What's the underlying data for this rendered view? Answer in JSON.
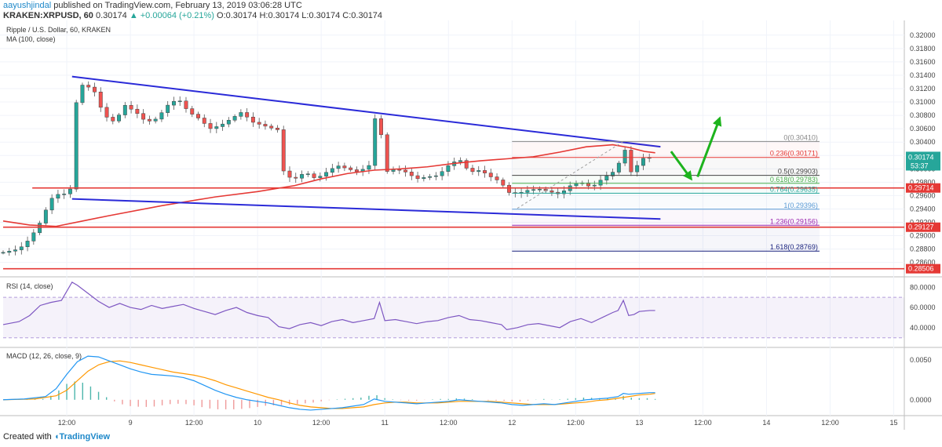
{
  "header": {
    "author": "aayushjindal",
    "published": "published on TradingView.com, February 13, 2019 03:06:28 UTC",
    "symbol": "KRAKEN:XRPUSD, 60",
    "last": "0.30174",
    "change": "▲ +0.00064 (+0.21%)",
    "open": "O:0.30174",
    "high": "H:0.30174",
    "low": "L:0.30174",
    "close": "C:0.30174"
  },
  "footer": {
    "created_with": "Created with",
    "brand": "TradingView"
  },
  "colors": {
    "up": "#26a69a",
    "down": "#ef5350",
    "ma": "#e53935",
    "channel": "#2a2ad8",
    "support": "#e53935",
    "arrow": "#1db31d",
    "rsi": "#7e57c2",
    "macd": "#2196f3",
    "signal": "#ff9800",
    "hist_up": "#4db6ac",
    "hist_down": "#ef9a9a"
  },
  "chart_data": {
    "type": "candlestick",
    "title": "Ripple / U.S. Dollar, 60, KRAKEN",
    "indicator_label": "MA (100, close)",
    "last_price": 0.30174,
    "countdown": "53:37",
    "ylim": [
      0.2842,
      0.3215
    ],
    "y_ticks": [
      "0.32000",
      "0.31800",
      "0.31600",
      "0.31400",
      "0.31200",
      "0.31000",
      "0.30800",
      "0.30600",
      "0.30400",
      "0.30200",
      "0.30000",
      "0.29800",
      "0.29600",
      "0.29400",
      "0.29200",
      "0.29000",
      "0.28800",
      "0.28600"
    ],
    "x_ticks": [
      {
        "label": "12:00",
        "t": 12
      },
      {
        "label": "9",
        "t": 24
      },
      {
        "label": "12:00",
        "t": 36
      },
      {
        "label": "10",
        "t": 48
      },
      {
        "label": "12:00",
        "t": 60
      },
      {
        "label": "11",
        "t": 72
      },
      {
        "label": "12:00",
        "t": 84
      },
      {
        "label": "12",
        "t": 96
      },
      {
        "label": "12:00",
        "t": 108
      },
      {
        "label": "13",
        "t": 120
      },
      {
        "label": "12:00",
        "t": 132
      },
      {
        "label": "14",
        "t": 144
      },
      {
        "label": "12:00",
        "t": 156
      },
      {
        "label": "15",
        "t": 168
      }
    ],
    "close_path": [
      [
        0,
        0.2875
      ],
      [
        3,
        0.288
      ],
      [
        5,
        0.2895
      ],
      [
        7,
        0.292
      ],
      [
        9,
        0.2955
      ],
      [
        11,
        0.2965
      ],
      [
        12,
        0.296
      ],
      [
        13,
        0.2975
      ],
      [
        14,
        0.313
      ],
      [
        15,
        0.3125
      ],
      [
        17,
        0.312
      ],
      [
        19,
        0.308
      ],
      [
        21,
        0.307
      ],
      [
        23,
        0.3095
      ],
      [
        25,
        0.3085
      ],
      [
        27,
        0.307
      ],
      [
        29,
        0.3075
      ],
      [
        31,
        0.3095
      ],
      [
        33,
        0.3105
      ],
      [
        35,
        0.3085
      ],
      [
        37,
        0.3075
      ],
      [
        39,
        0.306
      ],
      [
        41,
        0.3065
      ],
      [
        43,
        0.3075
      ],
      [
        45,
        0.3085
      ],
      [
        47,
        0.307
      ],
      [
        49,
        0.3065
      ],
      [
        51,
        0.306
      ],
      [
        52,
        0.3058
      ],
      [
        53,
        0.299
      ],
      [
        55,
        0.2985
      ],
      [
        57,
        0.2995
      ],
      [
        59,
        0.2985
      ],
      [
        61,
        0.2995
      ],
      [
        63,
        0.3005
      ],
      [
        65,
        0.3
      ],
      [
        67,
        0.2995
      ],
      [
        69,
        0.3005
      ],
      [
        70,
        0.3075
      ],
      [
        71,
        0.3075
      ],
      [
        72,
        0.2995
      ],
      [
        74,
        0.3
      ],
      [
        76,
        0.2995
      ],
      [
        78,
        0.2985
      ],
      [
        80,
        0.2988
      ],
      [
        82,
        0.299
      ],
      [
        84,
        0.3005
      ],
      [
        86,
        0.3015
      ],
      [
        88,
        0.2995
      ],
      [
        90,
        0.2998
      ],
      [
        92,
        0.2988
      ],
      [
        94,
        0.298
      ],
      [
        95,
        0.2965
      ],
      [
        97,
        0.2963
      ],
      [
        99,
        0.2968
      ],
      [
        101,
        0.297
      ],
      [
        103,
        0.2966
      ],
      [
        105,
        0.2962
      ],
      [
        107,
        0.2975
      ],
      [
        109,
        0.298
      ],
      [
        111,
        0.2972
      ],
      [
        113,
        0.2985
      ],
      [
        115,
        0.2995
      ],
      [
        116,
        0.3003
      ],
      [
        117,
        0.304
      ],
      [
        118,
        0.3
      ],
      [
        119,
        0.299
      ],
      [
        120,
        0.3015
      ],
      [
        122,
        0.3017
      ],
      [
        123,
        0.30174
      ]
    ],
    "moving_average": [
      [
        0,
        0.2922
      ],
      [
        5,
        0.2916
      ],
      [
        10,
        0.2914
      ],
      [
        15,
        0.2922
      ],
      [
        20,
        0.293
      ],
      [
        30,
        0.2945
      ],
      [
        40,
        0.2958
      ],
      [
        48,
        0.2966
      ],
      [
        55,
        0.2975
      ],
      [
        60,
        0.2985
      ],
      [
        65,
        0.2993
      ],
      [
        70,
        0.2998
      ],
      [
        75,
        0.3
      ],
      [
        80,
        0.3003
      ],
      [
        85,
        0.3008
      ],
      [
        90,
        0.3012
      ],
      [
        95,
        0.3015
      ],
      [
        100,
        0.3018
      ],
      [
        105,
        0.3025
      ],
      [
        110,
        0.3033
      ],
      [
        115,
        0.3036
      ],
      [
        118,
        0.3032
      ],
      [
        121,
        0.3026
      ],
      [
        123,
        0.3024
      ]
    ],
    "channel_upper": [
      [
        13,
        0.3138
      ],
      [
        124,
        0.3033
      ]
    ],
    "channel_lower": [
      [
        13,
        0.2955
      ],
      [
        124,
        0.2925
      ]
    ],
    "support_lines": [
      {
        "t0": 5.5,
        "price": 0.29714,
        "label": "0.29714"
      },
      {
        "t0": 0,
        "price": 0.29127,
        "label": "0.29127"
      },
      {
        "t0": 0,
        "price": 0.28506,
        "label": "0.28506"
      }
    ],
    "fibonacci": [
      {
        "level": "0",
        "price": 0.3041,
        "label": "0(0.30410)",
        "color": "#888888"
      },
      {
        "level": "0.236",
        "price": 0.30171,
        "label": "0.236(0.30171)",
        "color": "#e53935"
      },
      {
        "level": "0.5",
        "price": 0.29903,
        "label": "0.5(0.29903)",
        "color": "#444444"
      },
      {
        "level": "0.618",
        "price": 0.29783,
        "label": "0.618(0.29783)",
        "color": "#4caf50"
      },
      {
        "level": "0.764",
        "price": 0.29635,
        "label": "0.764(0.29635)",
        "color": "#26a69a"
      },
      {
        "level": "1",
        "price": 0.29396,
        "label": "1(0.29396)",
        "color": "#5b9bd5"
      },
      {
        "level": "1.236",
        "price": 0.29156,
        "label": "1.236(0.29156)",
        "color": "#9c27b0"
      },
      {
        "level": "1.618",
        "price": 0.28769,
        "label": "1.618(0.28769)",
        "color": "#1a237e"
      }
    ],
    "fib_range": {
      "t0": 96,
      "t1": 154
    },
    "fib_trend": [
      [
        97,
        0.2941
      ],
      [
        117,
        0.3041
      ]
    ],
    "forecast_arrows": [
      {
        "from": [
          126,
          0.3026
        ],
        "to": [
          129.5,
          0.2988
        ]
      },
      {
        "from": [
          131,
          0.2988
        ],
        "to": [
          135,
          0.3072
        ]
      }
    ],
    "rsi": {
      "label": "RSI (14, close)",
      "ticks": [
        "80.0000",
        "60.0000",
        "40.0000"
      ],
      "ylim": [
        22,
        88
      ],
      "band": [
        30,
        70
      ],
      "values": [
        [
          0,
          43
        ],
        [
          3,
          46
        ],
        [
          5,
          52
        ],
        [
          7,
          62
        ],
        [
          9,
          65
        ],
        [
          11,
          67
        ],
        [
          13,
          85
        ],
        [
          14,
          82
        ],
        [
          16,
          74
        ],
        [
          18,
          66
        ],
        [
          20,
          60
        ],
        [
          22,
          64
        ],
        [
          24,
          60
        ],
        [
          26,
          58
        ],
        [
          28,
          62
        ],
        [
          30,
          59
        ],
        [
          32,
          61
        ],
        [
          34,
          63
        ],
        [
          36,
          59
        ],
        [
          38,
          56
        ],
        [
          40,
          53
        ],
        [
          42,
          57
        ],
        [
          44,
          60
        ],
        [
          46,
          55
        ],
        [
          48,
          52
        ],
        [
          50,
          50
        ],
        [
          52,
          41
        ],
        [
          54,
          39
        ],
        [
          56,
          43
        ],
        [
          58,
          45
        ],
        [
          60,
          42
        ],
        [
          62,
          46
        ],
        [
          64,
          48
        ],
        [
          66,
          45
        ],
        [
          68,
          47
        ],
        [
          70,
          49
        ],
        [
          71,
          65
        ],
        [
          72,
          47
        ],
        [
          74,
          48
        ],
        [
          76,
          46
        ],
        [
          78,
          44
        ],
        [
          80,
          46
        ],
        [
          82,
          47
        ],
        [
          84,
          50
        ],
        [
          86,
          52
        ],
        [
          88,
          48
        ],
        [
          90,
          47
        ],
        [
          92,
          45
        ],
        [
          94,
          43
        ],
        [
          95,
          38
        ],
        [
          97,
          40
        ],
        [
          99,
          43
        ],
        [
          101,
          44
        ],
        [
          103,
          42
        ],
        [
          105,
          40
        ],
        [
          107,
          46
        ],
        [
          109,
          49
        ],
        [
          111,
          45
        ],
        [
          113,
          50
        ],
        [
          115,
          55
        ],
        [
          116,
          57
        ],
        [
          117,
          67
        ],
        [
          118,
          52
        ],
        [
          119,
          53
        ],
        [
          120,
          56
        ],
        [
          122,
          57
        ],
        [
          123,
          57
        ]
      ]
    },
    "macd": {
      "label": "MACD (12, 26, close, 9)",
      "ticks": [
        "0.0050",
        "0.0000"
      ],
      "ylim": [
        -0.0018,
        0.0064
      ],
      "macd_line": [
        [
          0,
          0.0
        ],
        [
          4,
          0.0001
        ],
        [
          8,
          0.0004
        ],
        [
          10,
          0.0014
        ],
        [
          12,
          0.0032
        ],
        [
          14,
          0.0048
        ],
        [
          16,
          0.0055
        ],
        [
          18,
          0.0054
        ],
        [
          20,
          0.0049
        ],
        [
          22,
          0.0044
        ],
        [
          24,
          0.0039
        ],
        [
          26,
          0.0035
        ],
        [
          28,
          0.0032
        ],
        [
          30,
          0.0031
        ],
        [
          32,
          0.003
        ],
        [
          34,
          0.0028
        ],
        [
          36,
          0.0024
        ],
        [
          38,
          0.0018
        ],
        [
          40,
          0.0012
        ],
        [
          42,
          0.0007
        ],
        [
          44,
          0.0003
        ],
        [
          46,
          0.0
        ],
        [
          48,
          -0.0002
        ],
        [
          50,
          -0.0004
        ],
        [
          52,
          -0.0007
        ],
        [
          54,
          -0.001
        ],
        [
          56,
          -0.0012
        ],
        [
          58,
          -0.0013
        ],
        [
          60,
          -0.0012
        ],
        [
          62,
          -0.0011
        ],
        [
          64,
          -0.001
        ],
        [
          66,
          -0.0008
        ],
        [
          68,
          -0.0006
        ],
        [
          70,
          0.0001
        ],
        [
          72,
          -0.0002
        ],
        [
          74,
          -0.0003
        ],
        [
          76,
          -0.0004
        ],
        [
          78,
          -0.0005
        ],
        [
          80,
          -0.0004
        ],
        [
          82,
          -0.0003
        ],
        [
          84,
          -0.0002
        ],
        [
          86,
          0.0
        ],
        [
          88,
          -0.0001
        ],
        [
          90,
          -0.0002
        ],
        [
          92,
          -0.0003
        ],
        [
          94,
          -0.0004
        ],
        [
          96,
          -0.0006
        ],
        [
          98,
          -0.0007
        ],
        [
          100,
          -0.0006
        ],
        [
          102,
          -0.0005
        ],
        [
          104,
          -0.0006
        ],
        [
          106,
          -0.0004
        ],
        [
          108,
          -0.0002
        ],
        [
          110,
          0.0
        ],
        [
          112,
          0.0001
        ],
        [
          114,
          0.0002
        ],
        [
          116,
          0.0004
        ],
        [
          117,
          0.0008
        ],
        [
          118,
          0.0007
        ],
        [
          120,
          0.0008
        ],
        [
          122,
          0.0009
        ],
        [
          123,
          0.0009
        ]
      ],
      "signal_line": [
        [
          0,
          0.0
        ],
        [
          6,
          0.0001
        ],
        [
          10,
          0.0005
        ],
        [
          12,
          0.0012
        ],
        [
          14,
          0.0024
        ],
        [
          16,
          0.0036
        ],
        [
          18,
          0.0044
        ],
        [
          20,
          0.0048
        ],
        [
          22,
          0.0049
        ],
        [
          24,
          0.0047
        ],
        [
          26,
          0.0044
        ],
        [
          28,
          0.0041
        ],
        [
          30,
          0.0038
        ],
        [
          32,
          0.0035
        ],
        [
          34,
          0.0033
        ],
        [
          36,
          0.0031
        ],
        [
          38,
          0.0028
        ],
        [
          40,
          0.0024
        ],
        [
          42,
          0.0019
        ],
        [
          44,
          0.0015
        ],
        [
          46,
          0.0011
        ],
        [
          48,
          0.0007
        ],
        [
          50,
          0.0003
        ],
        [
          52,
          0.0
        ],
        [
          54,
          -0.0004
        ],
        [
          56,
          -0.0007
        ],
        [
          58,
          -0.0009
        ],
        [
          60,
          -0.001
        ],
        [
          62,
          -0.0011
        ],
        [
          64,
          -0.0011
        ],
        [
          66,
          -0.001
        ],
        [
          68,
          -0.0009
        ],
        [
          70,
          -0.0006
        ],
        [
          72,
          -0.0004
        ],
        [
          74,
          -0.0003
        ],
        [
          76,
          -0.0003
        ],
        [
          78,
          -0.0004
        ],
        [
          80,
          -0.0004
        ],
        [
          82,
          -0.0004
        ],
        [
          84,
          -0.0003
        ],
        [
          86,
          -0.0002
        ],
        [
          88,
          -0.0002
        ],
        [
          90,
          -0.0002
        ],
        [
          92,
          -0.0002
        ],
        [
          94,
          -0.0003
        ],
        [
          96,
          -0.0004
        ],
        [
          98,
          -0.0005
        ],
        [
          100,
          -0.0006
        ],
        [
          102,
          -0.0006
        ],
        [
          104,
          -0.0006
        ],
        [
          106,
          -0.0005
        ],
        [
          108,
          -0.0004
        ],
        [
          110,
          -0.0003
        ],
        [
          112,
          -0.0001
        ],
        [
          114,
          0.0
        ],
        [
          116,
          0.0002
        ],
        [
          118,
          0.0004
        ],
        [
          120,
          0.0006
        ],
        [
          122,
          0.0007
        ],
        [
          123,
          0.0008
        ]
      ]
    }
  }
}
